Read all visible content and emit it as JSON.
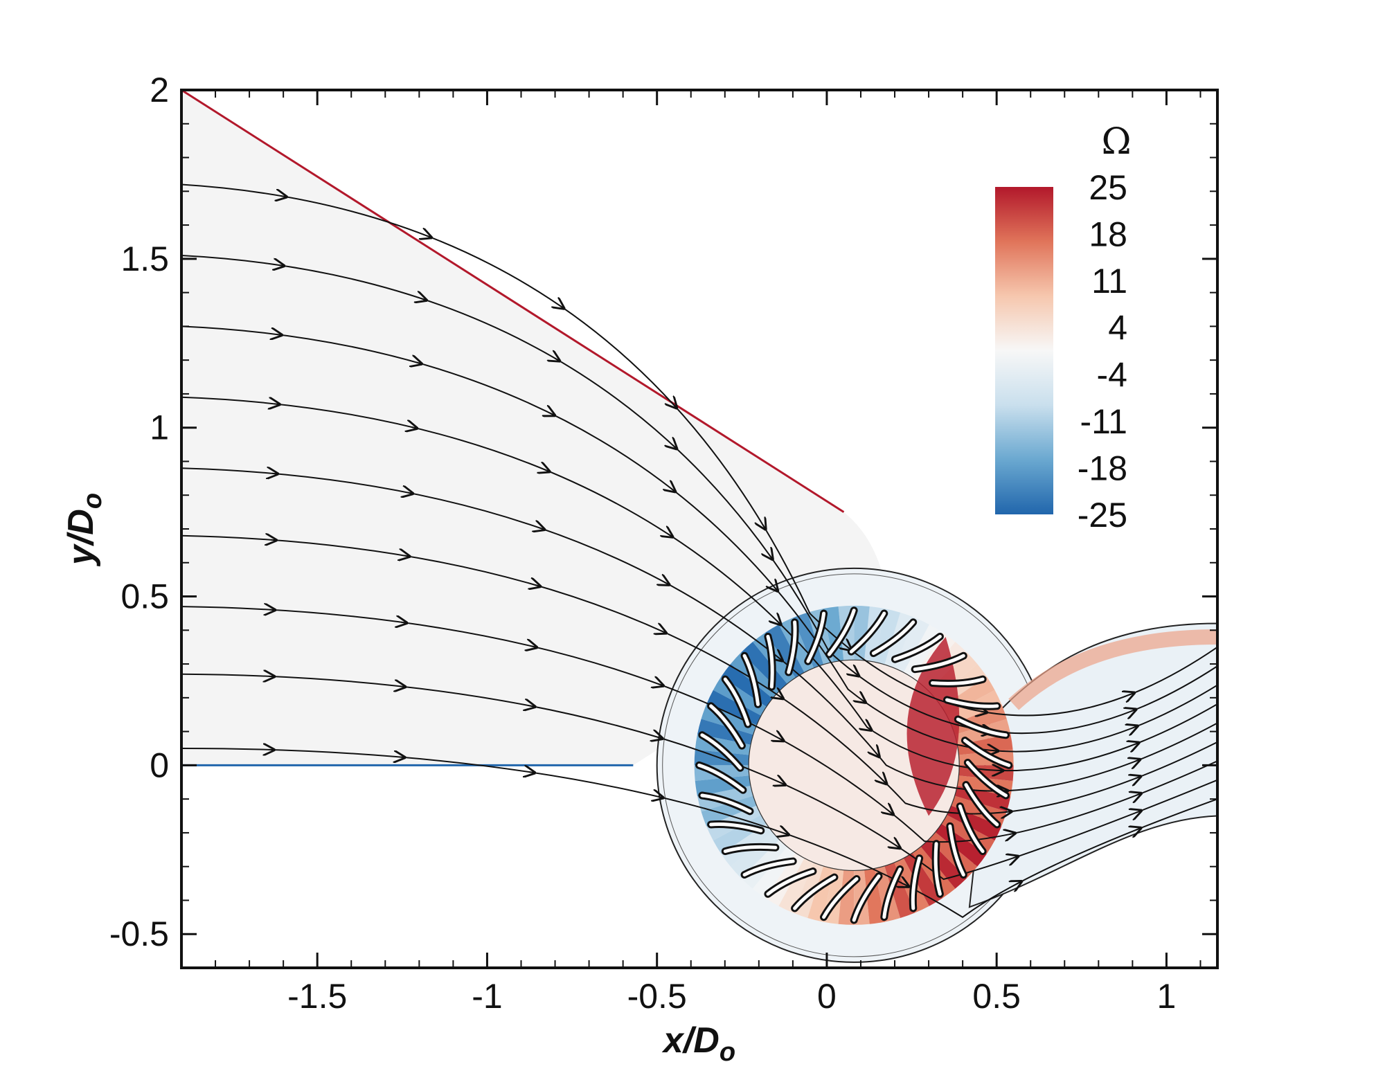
{
  "chart_data": {
    "type": "heatmap",
    "title": "",
    "xlabel": "x/D",
    "xlabel_sub": "o",
    "ylabel": "y/D",
    "ylabel_sub": "o",
    "xlim": [
      -1.9,
      1.15
    ],
    "ylim": [
      -0.6,
      2.0
    ],
    "x_ticks": [
      -1.5,
      -1,
      -0.5,
      0,
      0.5,
      1
    ],
    "x_tick_labels": [
      "-1.5",
      "-1",
      "-0.5",
      "0",
      "0.5",
      "1"
    ],
    "y_ticks": [
      -0.5,
      0,
      0.5,
      1,
      1.5,
      2
    ],
    "y_tick_labels": [
      "-0.5",
      "0",
      "0.5",
      "1",
      "1.5",
      "2"
    ],
    "colorbar": {
      "title": "Ω",
      "min": -25,
      "max": 25,
      "levels": [
        25,
        18,
        11,
        4,
        -4,
        -11,
        -18,
        -25
      ],
      "level_labels": [
        "25",
        "18",
        "11",
        "4",
        "-4",
        "-11",
        "-18",
        "-25"
      ],
      "colors": [
        "#b2182b",
        "#e0745a",
        "#f6c7ae",
        "#f7f7f7",
        "#c9dfed",
        "#6aa8d0",
        "#2166ac"
      ]
    },
    "geometry": {
      "rotor_center": [
        0.08,
        0.0
      ],
      "rotor_outer_radius": 0.47,
      "rotor_inner_radius": 0.31,
      "blade_count": 32,
      "housing_radius": 0.58,
      "inlet_top_line": [
        [
          -1.9,
          2.0
        ],
        [
          0.05,
          0.75
        ]
      ],
      "inlet_bottom_y": 0.0,
      "outlet_upper_edge": [
        [
          0.5,
          0.15
        ],
        [
          1.15,
          0.42
        ]
      ],
      "outlet_lower_edge": [
        [
          0.5,
          -0.42
        ],
        [
          1.15,
          -0.15
        ]
      ]
    },
    "streamline_start_y": [
      1.72,
      1.51,
      1.3,
      1.09,
      0.88,
      0.68,
      0.47,
      0.27,
      0.05
    ],
    "legend": "colorbar-top-right",
    "grid": false
  }
}
